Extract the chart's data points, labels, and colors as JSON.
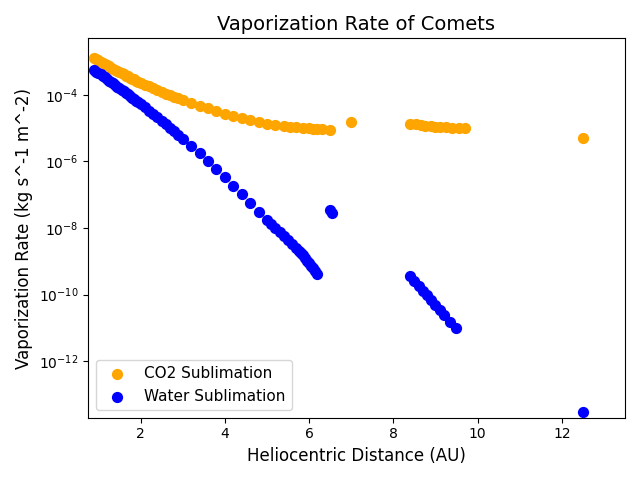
{
  "title": "Vaporization Rate of Comets",
  "xlabel": "Heliocentric Distance (AU)",
  "ylabel": "Vaporization Rate (kg s^-1 m^-2)",
  "co2_color": "#FFA500",
  "water_color": "#0000FF",
  "co2_label": "CO2 Sublimation",
  "water_label": "Water Sublimation",
  "co2_x": [
    0.9,
    0.95,
    1.0,
    1.05,
    1.1,
    1.15,
    1.2,
    1.25,
    1.3,
    1.35,
    1.4,
    1.45,
    1.5,
    1.55,
    1.6,
    1.65,
    1.7,
    1.75,
    1.8,
    1.85,
    1.9,
    1.95,
    2.0,
    2.1,
    2.2,
    2.3,
    2.4,
    2.5,
    2.6,
    2.7,
    2.8,
    2.9,
    3.0,
    3.2,
    3.4,
    3.6,
    3.8,
    4.0,
    4.2,
    4.4,
    4.6,
    4.8,
    5.0,
    5.2,
    5.4,
    5.55,
    5.7,
    5.85,
    6.0,
    6.1,
    6.2,
    6.3,
    6.5,
    7.0,
    8.4,
    8.55,
    8.65,
    8.75,
    8.9,
    9.0,
    9.1,
    9.25,
    9.4,
    9.55,
    9.7,
    12.5
  ],
  "co2_y": [
    0.0013,
    0.0012,
    0.0011,
    0.001,
    0.00092,
    0.00085,
    0.00078,
    0.00072,
    0.00066,
    0.00061,
    0.00056,
    0.00052,
    0.00048,
    0.00045,
    0.00041,
    0.00038,
    0.00036,
    0.00033,
    0.00031,
    0.00029,
    0.00027,
    0.00025,
    0.000235,
    0.000205,
    0.00018,
    0.000158,
    0.00014,
    0.000124,
    0.00011,
    9.8e-05,
    8.8e-05,
    7.8e-05,
    7e-05,
    5.7e-05,
    4.7e-05,
    3.9e-05,
    3.25e-05,
    2.7e-05,
    2.3e-05,
    2e-05,
    1.75e-05,
    1.55e-05,
    1.38e-05,
    1.25e-05,
    1.15e-05,
    1.1e-05,
    1.05e-05,
    1.02e-05,
    9.8e-06,
    9.6e-06,
    9.4e-06,
    9.2e-06,
    8.8e-06,
    1.5e-05,
    1.35e-05,
    1.3e-05,
    1.25e-05,
    1.2e-05,
    1.15e-05,
    1.12e-05,
    1.08e-05,
    1.05e-05,
    1.02e-05,
    1e-05,
    9.8e-06,
    5e-06
  ],
  "water_x": [
    0.9,
    0.95,
    1.0,
    1.05,
    1.1,
    1.15,
    1.2,
    1.25,
    1.3,
    1.35,
    1.4,
    1.45,
    1.5,
    1.55,
    1.6,
    1.65,
    1.7,
    1.75,
    1.8,
    1.85,
    1.9,
    1.95,
    2.0,
    2.1,
    2.2,
    2.3,
    2.4,
    2.5,
    2.6,
    2.7,
    2.8,
    2.9,
    3.0,
    3.2,
    3.4,
    3.6,
    3.8,
    4.0,
    4.2,
    4.4,
    4.6,
    4.8,
    5.0,
    5.1,
    5.2,
    5.3,
    5.4,
    5.5,
    5.6,
    5.7,
    5.75,
    5.8,
    5.85,
    5.9,
    5.95,
    6.0,
    6.05,
    6.1,
    6.15,
    6.2,
    6.5,
    6.55,
    8.4,
    8.5,
    8.6,
    8.7,
    8.8,
    8.9,
    9.0,
    9.1,
    9.2,
    9.35,
    9.5,
    12.5
  ],
  "water_y": [
    0.00055,
    0.0005,
    0.00045,
    0.00041,
    0.00037,
    0.000335,
    0.0003,
    0.00027,
    0.000245,
    0.00022,
    0.000198,
    0.000178,
    0.00016,
    0.000144,
    0.000129,
    0.000116,
    0.000104,
    9.3e-05,
    8.3e-05,
    7.5e-05,
    6.7e-05,
    6e-05,
    5.3e-05,
    4.2e-05,
    3.35e-05,
    2.65e-05,
    2.1e-05,
    1.65e-05,
    1.3e-05,
    1.02e-05,
    8e-06,
    6.2e-06,
    4.8e-06,
    2.9e-06,
    1.75e-06,
    1e-06,
    5.8e-07,
    3.3e-07,
    1.85e-07,
    1.04e-07,
    5.7e-08,
    3.1e-08,
    1.7e-08,
    1.3e-08,
    1e-08,
    7.5e-09,
    5.8e-09,
    4.4e-09,
    3.3e-09,
    2.5e-09,
    2.1e-09,
    1.8e-09,
    1.5e-09,
    1.25e-09,
    1.05e-09,
    8.8e-10,
    7.3e-10,
    6.1e-10,
    5.1e-10,
    4.2e-10,
    3.5e-08,
    2.8e-08,
    3.5e-10,
    2.5e-10,
    1.8e-10,
    1.3e-10,
    9.5e-11,
    6.8e-11,
    5e-11,
    3.5e-11,
    2.5e-11,
    1.5e-11,
    1e-11,
    3e-14
  ],
  "ylim_min": 2e-14,
  "ylim_max": 0.005,
  "xlim_min": 0.75,
  "xlim_max": 13.5,
  "marker_size": 50,
  "title_fontsize": 14,
  "label_fontsize": 12,
  "legend_fontsize": 11
}
